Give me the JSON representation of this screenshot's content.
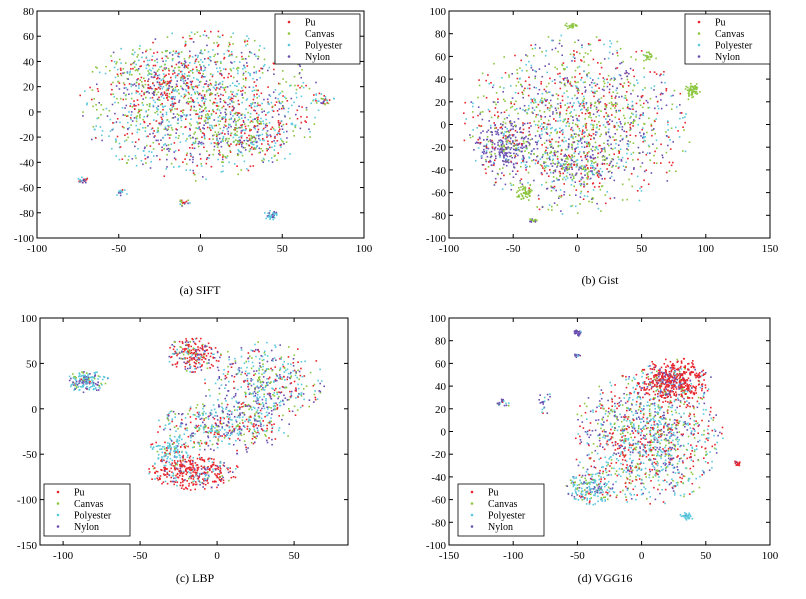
{
  "figure": {
    "series_colors": {
      "Pu": "#e8252c",
      "Canvas": "#8cc63f",
      "Polyester": "#5bc8dc",
      "Nylon": "#6a4fb0"
    }
  },
  "chart_data": [
    {
      "type": "scatter",
      "caption": "(a) SIFT",
      "xlim": [
        -100,
        100
      ],
      "ylim": [
        -100,
        80
      ],
      "xticks": [
        -100,
        -50,
        0,
        50,
        100
      ],
      "yticks": [
        -100,
        -80,
        -60,
        -40,
        -20,
        0,
        20,
        40,
        60,
        80
      ],
      "grid": false,
      "legend_position": "top-right",
      "series": [
        {
          "name": "Pu",
          "color": "#e8252c"
        },
        {
          "name": "Canvas",
          "color": "#8cc63f"
        },
        {
          "name": "Polyester",
          "color": "#5bc8dc"
        },
        {
          "name": "Nylon",
          "color": "#6a4fb0"
        }
      ],
      "clusters": [
        {
          "cx": 0,
          "cy": 5,
          "rx": 75,
          "ry": 60,
          "n": 1500,
          "mix": [
            0.25,
            0.25,
            0.3,
            0.2
          ]
        },
        {
          "cx": -25,
          "cy": 30,
          "rx": 30,
          "ry": 20,
          "n": 150,
          "mix": [
            0.3,
            0.3,
            0.2,
            0.2
          ]
        },
        {
          "cx": 30,
          "cy": -20,
          "rx": 25,
          "ry": 20,
          "n": 150,
          "mix": [
            0.2,
            0.3,
            0.3,
            0.2
          ]
        },
        {
          "cx": -72,
          "cy": -54,
          "rx": 4,
          "ry": 3,
          "n": 25,
          "mix": [
            0.4,
            0.0,
            0.2,
            0.4
          ]
        },
        {
          "cx": 43,
          "cy": -82,
          "rx": 5,
          "ry": 4,
          "n": 40,
          "mix": [
            0.0,
            0.0,
            0.7,
            0.3
          ]
        },
        {
          "cx": -10,
          "cy": -72,
          "rx": 4,
          "ry": 3,
          "n": 18,
          "mix": [
            0.3,
            0.2,
            0.1,
            0.4
          ]
        },
        {
          "cx": 75,
          "cy": 10,
          "rx": 8,
          "ry": 5,
          "n": 30,
          "mix": [
            0.2,
            0.2,
            0.4,
            0.2
          ]
        },
        {
          "cx": -48,
          "cy": -64,
          "rx": 4,
          "ry": 3,
          "n": 15,
          "mix": [
            0.1,
            0.0,
            0.7,
            0.2
          ]
        }
      ]
    },
    {
      "type": "scatter",
      "caption": "(b) Gist",
      "xlim": [
        -100,
        150
      ],
      "ylim": [
        -100,
        100
      ],
      "xticks": [
        -100,
        -50,
        0,
        50,
        100,
        150
      ],
      "yticks": [
        -100,
        -80,
        -60,
        -40,
        -20,
        0,
        20,
        40,
        60,
        80,
        100
      ],
      "grid": false,
      "legend_position": "top-right",
      "series": [
        {
          "name": "Pu",
          "color": "#e8252c"
        },
        {
          "name": "Canvas",
          "color": "#8cc63f"
        },
        {
          "name": "Polyester",
          "color": "#5bc8dc"
        },
        {
          "name": "Nylon",
          "color": "#6a4fb0"
        }
      ],
      "clusters": [
        {
          "cx": 0,
          "cy": 0,
          "rx": 90,
          "ry": 80,
          "n": 1400,
          "mix": [
            0.25,
            0.3,
            0.2,
            0.25
          ]
        },
        {
          "cx": -55,
          "cy": -20,
          "rx": 25,
          "ry": 25,
          "n": 250,
          "mix": [
            0.05,
            0.15,
            0.05,
            0.75
          ]
        },
        {
          "cx": -5,
          "cy": -35,
          "rx": 30,
          "ry": 25,
          "n": 200,
          "mix": [
            0.1,
            0.3,
            0.2,
            0.4
          ]
        },
        {
          "cx": 90,
          "cy": 30,
          "rx": 6,
          "ry": 7,
          "n": 60,
          "mix": [
            0.0,
            1.0,
            0.0,
            0.0
          ]
        },
        {
          "cx": -5,
          "cy": 87,
          "rx": 5,
          "ry": 3,
          "n": 20,
          "mix": [
            0.0,
            1.0,
            0.0,
            0.0
          ]
        },
        {
          "cx": -40,
          "cy": -60,
          "rx": 8,
          "ry": 8,
          "n": 50,
          "mix": [
            0.0,
            1.0,
            0.0,
            0.0
          ]
        },
        {
          "cx": 55,
          "cy": 60,
          "rx": 5,
          "ry": 4,
          "n": 20,
          "mix": [
            0.0,
            1.0,
            0.0,
            0.0
          ]
        },
        {
          "cx": -35,
          "cy": -85,
          "rx": 4,
          "ry": 3,
          "n": 15,
          "mix": [
            0.0,
            0.4,
            0.0,
            0.6
          ]
        }
      ]
    },
    {
      "type": "scatter",
      "caption": "(c) LBP",
      "xlim": [
        -115,
        85
      ],
      "ylim": [
        -150,
        100
      ],
      "xticks": [
        -100,
        -50,
        0,
        50
      ],
      "yticks": [
        -150,
        -100,
        -50,
        0,
        50,
        100
      ],
      "grid": false,
      "legend_position": "bottom-left",
      "series": [
        {
          "name": "Pu",
          "color": "#e8252c"
        },
        {
          "name": "Canvas",
          "color": "#8cc63f"
        },
        {
          "name": "Polyester",
          "color": "#5bc8dc"
        },
        {
          "name": "Nylon",
          "color": "#6a4fb0"
        }
      ],
      "clusters": [
        {
          "cx": -85,
          "cy": 30,
          "rx": 15,
          "ry": 12,
          "n": 160,
          "mix": [
            0.05,
            0.1,
            0.6,
            0.25
          ]
        },
        {
          "cx": -15,
          "cy": 60,
          "rx": 18,
          "ry": 20,
          "n": 220,
          "mix": [
            0.65,
            0.1,
            0.1,
            0.15
          ]
        },
        {
          "cx": 30,
          "cy": 30,
          "rx": 40,
          "ry": 45,
          "n": 450,
          "mix": [
            0.15,
            0.2,
            0.35,
            0.3
          ]
        },
        {
          "cx": 5,
          "cy": -20,
          "rx": 45,
          "ry": 30,
          "n": 450,
          "mix": [
            0.2,
            0.2,
            0.35,
            0.25
          ]
        },
        {
          "cx": -15,
          "cy": -70,
          "rx": 30,
          "ry": 20,
          "n": 380,
          "mix": [
            0.7,
            0.05,
            0.15,
            0.1
          ]
        },
        {
          "cx": -30,
          "cy": -45,
          "rx": 15,
          "ry": 15,
          "n": 120,
          "mix": [
            0.2,
            0.1,
            0.6,
            0.1
          ]
        }
      ]
    },
    {
      "type": "scatter",
      "caption": "(d) VGG16",
      "xlim": [
        -150,
        100
      ],
      "ylim": [
        -100,
        100
      ],
      "xticks": [
        -150,
        -100,
        -50,
        0,
        50,
        100
      ],
      "yticks": [
        -100,
        -80,
        -60,
        -40,
        -20,
        0,
        20,
        40,
        60,
        80,
        100
      ],
      "grid": false,
      "legend_position": "bottom-left",
      "series": [
        {
          "name": "Pu",
          "color": "#e8252c"
        },
        {
          "name": "Canvas",
          "color": "#8cc63f"
        },
        {
          "name": "Polyester",
          "color": "#5bc8dc"
        },
        {
          "name": "Nylon",
          "color": "#6a4fb0"
        }
      ],
      "clusters": [
        {
          "cx": 5,
          "cy": -5,
          "rx": 60,
          "ry": 60,
          "n": 1200,
          "mix": [
            0.25,
            0.2,
            0.3,
            0.25
          ]
        },
        {
          "cx": 25,
          "cy": 45,
          "rx": 30,
          "ry": 20,
          "n": 500,
          "mix": [
            0.75,
            0.05,
            0.05,
            0.15
          ]
        },
        {
          "cx": -40,
          "cy": -50,
          "rx": 20,
          "ry": 15,
          "n": 200,
          "mix": [
            0.1,
            0.2,
            0.5,
            0.2
          ]
        },
        {
          "cx": -50,
          "cy": 87,
          "rx": 3,
          "ry": 3,
          "n": 25,
          "mix": [
            0.0,
            0.0,
            0.1,
            0.9
          ]
        },
        {
          "cx": -108,
          "cy": 25,
          "rx": 6,
          "ry": 5,
          "n": 20,
          "mix": [
            0.1,
            0.1,
            0.2,
            0.6
          ]
        },
        {
          "cx": -75,
          "cy": 25,
          "rx": 6,
          "ry": 10,
          "n": 20,
          "mix": [
            0.1,
            0.1,
            0.2,
            0.6
          ]
        },
        {
          "cx": -50,
          "cy": 67,
          "rx": 3,
          "ry": 2,
          "n": 10,
          "mix": [
            0.0,
            0.0,
            0.5,
            0.5
          ]
        },
        {
          "cx": 35,
          "cy": -75,
          "rx": 6,
          "ry": 4,
          "n": 30,
          "mix": [
            0.0,
            0.0,
            0.9,
            0.1
          ]
        },
        {
          "cx": 75,
          "cy": -28,
          "rx": 3,
          "ry": 3,
          "n": 15,
          "mix": [
            0.9,
            0.0,
            0.0,
            0.1
          ]
        }
      ]
    }
  ]
}
